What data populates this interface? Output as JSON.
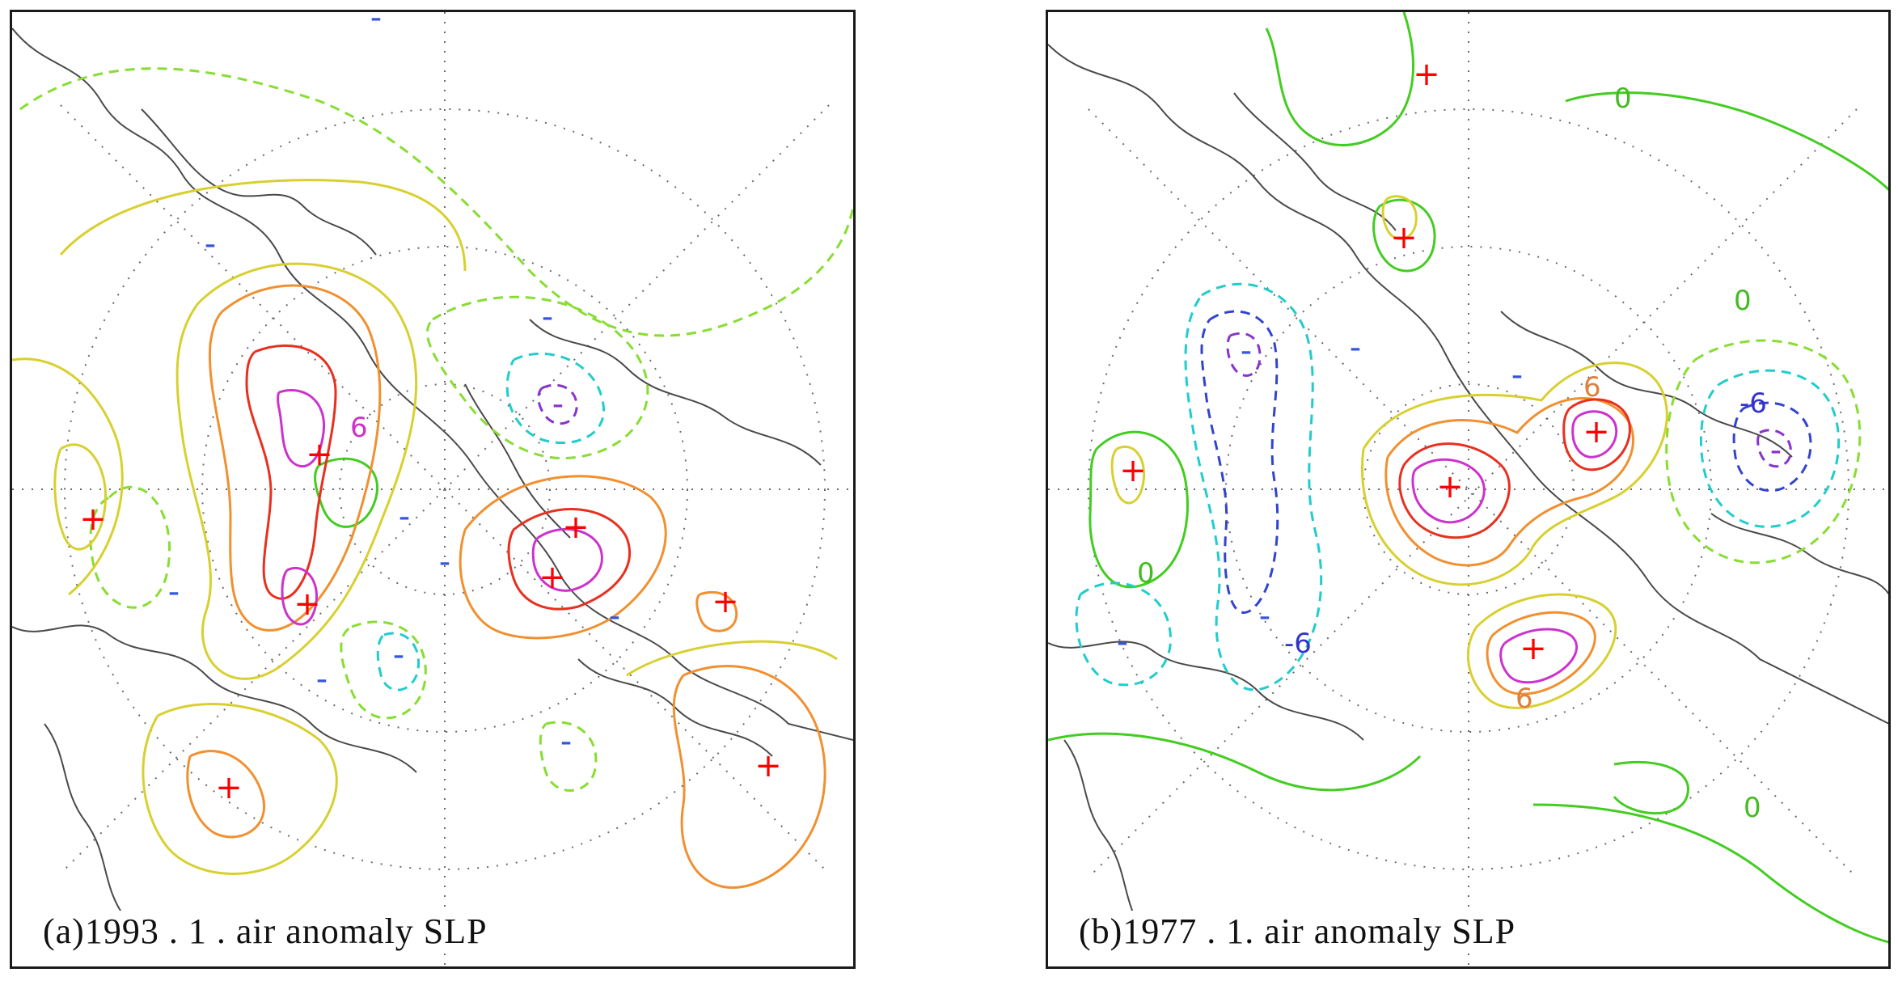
{
  "figure": {
    "panels": [
      {
        "id": "a",
        "caption": "(a)1993 . 1 . air anomaly SLP",
        "labels": [
          {
            "text": "6",
            "color": "#cc33cc"
          }
        ]
      },
      {
        "id": "b",
        "caption": "(b)1977 . 1. air anomaly SLP",
        "labels": [
          {
            "text": "-6",
            "color": "#3333cc"
          },
          {
            "text": "-6",
            "color": "#3333cc"
          },
          {
            "text": "6",
            "color": "#e0803a"
          },
          {
            "text": "6",
            "color": "#e0803a"
          },
          {
            "text": "0",
            "color": "#44bb22"
          },
          {
            "text": "0",
            "color": "#44bb22"
          },
          {
            "text": "0",
            "color": "#44bb22"
          },
          {
            "text": "0",
            "color": "#44bb22"
          }
        ]
      }
    ],
    "symbols": {
      "high": "+",
      "low": "-"
    },
    "colors": {
      "high_core": "#ff0000",
      "positive_strong": "#e83020",
      "positive_mid": "#f09030",
      "positive_weak": "#d8d030",
      "zero": "#44cc22",
      "negative_weak": "#88dd33",
      "negative_mid": "#22cccc",
      "negative_strong": "#3344cc",
      "negative_core": "#8833cc",
      "coastline": "#4a4a4a",
      "grid": "#666666"
    }
  }
}
